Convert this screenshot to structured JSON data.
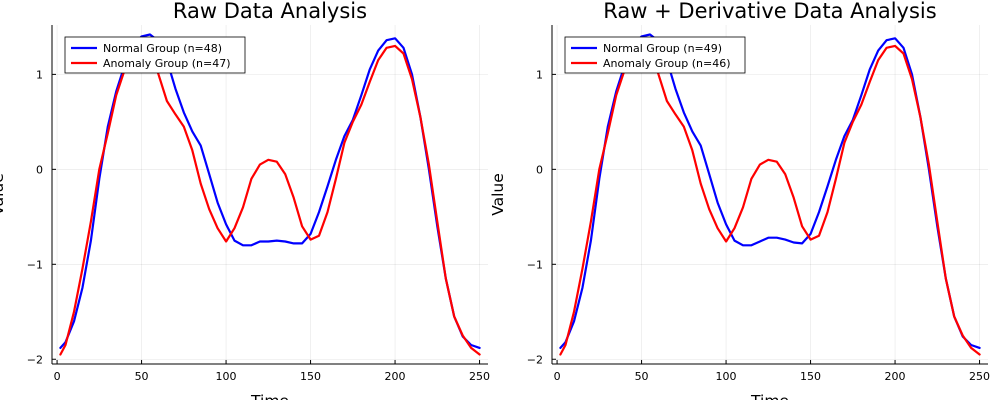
{
  "chart_data": [
    {
      "type": "line",
      "title": "Raw Data Analysis",
      "xlabel": "Time",
      "ylabel": "Value",
      "xlim": [
        -3,
        255
      ],
      "ylim": [
        -2.05,
        1.52
      ],
      "xticks": [
        0,
        50,
        100,
        150,
        200,
        250
      ],
      "xtick_labels": [
        "0",
        "50",
        "100",
        "150",
        "200",
        "250"
      ],
      "yticks": [
        -2,
        -1,
        0,
        1
      ],
      "ytick_labels": [
        "−2",
        "−1",
        "0",
        "1"
      ],
      "grid": true,
      "legend_position": "top-left",
      "series": [
        {
          "name": "Normal Group (n=48)",
          "color": "#0000ff",
          "x": [
            2,
            5,
            10,
            15,
            20,
            25,
            30,
            35,
            40,
            45,
            50,
            55,
            60,
            65,
            70,
            75,
            80,
            85,
            90,
            95,
            100,
            105,
            110,
            115,
            120,
            125,
            130,
            135,
            140,
            145,
            150,
            155,
            160,
            165,
            170,
            175,
            180,
            185,
            190,
            195,
            200,
            205,
            210,
            215,
            220,
            225,
            230,
            235,
            240,
            245,
            250
          ],
          "y": [
            -1.88,
            -1.82,
            -1.6,
            -1.25,
            -0.75,
            -0.1,
            0.45,
            0.82,
            1.1,
            1.3,
            1.4,
            1.42,
            1.35,
            1.15,
            0.85,
            0.6,
            0.4,
            0.25,
            -0.05,
            -0.35,
            -0.58,
            -0.75,
            -0.8,
            -0.8,
            -0.76,
            -0.76,
            -0.75,
            -0.76,
            -0.78,
            -0.78,
            -0.68,
            -0.45,
            -0.18,
            0.1,
            0.35,
            0.52,
            0.78,
            1.05,
            1.25,
            1.36,
            1.38,
            1.28,
            1.0,
            0.55,
            0.0,
            -0.6,
            -1.15,
            -1.55,
            -1.76,
            -1.85,
            -1.88
          ]
        },
        {
          "name": "Anomaly Group (n=47)",
          "color": "#ff0000",
          "x": [
            2,
            5,
            10,
            15,
            20,
            25,
            30,
            35,
            40,
            45,
            50,
            55,
            60,
            65,
            70,
            75,
            80,
            85,
            90,
            95,
            100,
            105,
            110,
            115,
            120,
            125,
            130,
            135,
            140,
            145,
            150,
            155,
            160,
            165,
            170,
            175,
            180,
            185,
            190,
            195,
            200,
            205,
            210,
            215,
            220,
            225,
            230,
            235,
            240,
            245,
            250
          ],
          "y": [
            -1.95,
            -1.85,
            -1.5,
            -1.05,
            -0.55,
            0.0,
            0.38,
            0.78,
            1.05,
            1.25,
            1.35,
            1.25,
            1.0,
            0.72,
            0.58,
            0.45,
            0.2,
            -0.15,
            -0.42,
            -0.62,
            -0.76,
            -0.62,
            -0.4,
            -0.1,
            0.05,
            0.1,
            0.08,
            -0.05,
            -0.3,
            -0.6,
            -0.74,
            -0.7,
            -0.45,
            -0.1,
            0.28,
            0.5,
            0.68,
            0.92,
            1.15,
            1.28,
            1.3,
            1.22,
            0.95,
            0.55,
            0.05,
            -0.55,
            -1.15,
            -1.55,
            -1.75,
            -1.88,
            -1.95
          ]
        }
      ]
    },
    {
      "type": "line",
      "title": "Raw + Derivative Data Analysis",
      "xlabel": "Time",
      "ylabel": "Value",
      "xlim": [
        -3,
        255
      ],
      "ylim": [
        -2.05,
        1.52
      ],
      "xticks": [
        0,
        50,
        100,
        150,
        200,
        250
      ],
      "xtick_labels": [
        "0",
        "50",
        "100",
        "150",
        "200",
        "250"
      ],
      "yticks": [
        -2,
        -1,
        0,
        1
      ],
      "ytick_labels": [
        "−2",
        "−1",
        "0",
        "1"
      ],
      "grid": true,
      "legend_position": "top-left",
      "series": [
        {
          "name": "Normal Group (n=49)",
          "color": "#0000ff",
          "x": [
            2,
            5,
            10,
            15,
            20,
            25,
            30,
            35,
            40,
            45,
            50,
            55,
            60,
            65,
            70,
            75,
            80,
            85,
            90,
            95,
            100,
            105,
            110,
            115,
            120,
            125,
            130,
            135,
            140,
            145,
            150,
            155,
            160,
            165,
            170,
            175,
            180,
            185,
            190,
            195,
            200,
            205,
            210,
            215,
            220,
            225,
            230,
            235,
            240,
            245,
            250
          ],
          "y": [
            -1.88,
            -1.82,
            -1.6,
            -1.25,
            -0.75,
            -0.1,
            0.45,
            0.82,
            1.1,
            1.3,
            1.4,
            1.42,
            1.35,
            1.15,
            0.85,
            0.6,
            0.4,
            0.25,
            -0.05,
            -0.35,
            -0.58,
            -0.75,
            -0.8,
            -0.8,
            -0.76,
            -0.72,
            -0.72,
            -0.74,
            -0.77,
            -0.78,
            -0.68,
            -0.45,
            -0.18,
            0.1,
            0.35,
            0.52,
            0.78,
            1.05,
            1.25,
            1.36,
            1.38,
            1.28,
            1.0,
            0.55,
            0.0,
            -0.6,
            -1.15,
            -1.55,
            -1.76,
            -1.85,
            -1.88
          ]
        },
        {
          "name": "Anomaly Group (n=46)",
          "color": "#ff0000",
          "x": [
            2,
            5,
            10,
            15,
            20,
            25,
            30,
            35,
            40,
            45,
            50,
            55,
            60,
            65,
            70,
            75,
            80,
            85,
            90,
            95,
            100,
            105,
            110,
            115,
            120,
            125,
            130,
            135,
            140,
            145,
            150,
            155,
            160,
            165,
            170,
            175,
            180,
            185,
            190,
            195,
            200,
            205,
            210,
            215,
            220,
            225,
            230,
            235,
            240,
            245,
            250
          ],
          "y": [
            -1.95,
            -1.85,
            -1.5,
            -1.05,
            -0.55,
            0.0,
            0.38,
            0.78,
            1.05,
            1.25,
            1.35,
            1.25,
            1.0,
            0.72,
            0.58,
            0.45,
            0.2,
            -0.15,
            -0.42,
            -0.62,
            -0.76,
            -0.62,
            -0.4,
            -0.1,
            0.05,
            0.1,
            0.08,
            -0.05,
            -0.3,
            -0.6,
            -0.74,
            -0.7,
            -0.45,
            -0.1,
            0.28,
            0.5,
            0.68,
            0.92,
            1.15,
            1.28,
            1.3,
            1.22,
            0.95,
            0.55,
            0.05,
            -0.55,
            -1.15,
            -1.55,
            -1.75,
            -1.88,
            -1.95
          ]
        }
      ]
    }
  ]
}
